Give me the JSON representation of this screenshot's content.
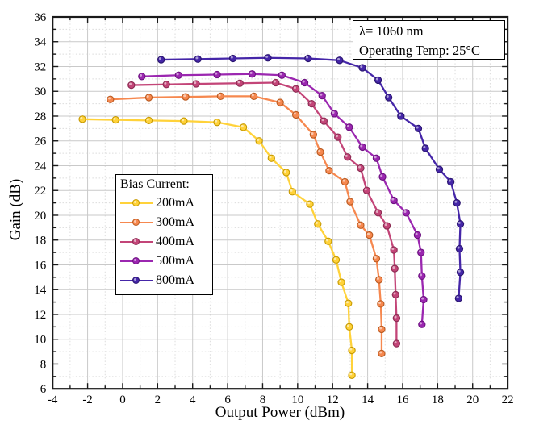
{
  "annotation": {
    "line1": "λ= 1060 nm",
    "line2": "Operating Temp:  25°C"
  },
  "legend": {
    "title": "Bias Current:"
  },
  "chart_data": {
    "type": "line",
    "title": "",
    "xlabel": "Output Power (dBm)",
    "ylabel": "Gain (dB)",
    "xlim": [
      -4,
      22
    ],
    "ylim": [
      6,
      36
    ],
    "x_ticks": [
      -4,
      -2,
      0,
      2,
      4,
      6,
      8,
      10,
      12,
      14,
      16,
      18,
      20,
      22
    ],
    "y_ticks": [
      6,
      8,
      10,
      12,
      14,
      16,
      18,
      20,
      22,
      24,
      26,
      28,
      30,
      32,
      34,
      36
    ],
    "grid": "major solid gray every 2, minor dotted every 1",
    "legend_position": "inside center-left",
    "colors": {
      "major_grid": "#c9c9c9",
      "minor_grid": "#dcdcdc",
      "axis": "#1a1a1a"
    },
    "series": [
      {
        "label": "200mA",
        "color": "#ffd23a",
        "rim": "#c79a00",
        "points": [
          [
            -2.3,
            27.75
          ],
          [
            -0.4,
            27.7
          ],
          [
            1.5,
            27.65
          ],
          [
            3.5,
            27.6
          ],
          [
            5.4,
            27.5
          ],
          [
            6.9,
            27.1
          ],
          [
            7.8,
            26.0
          ],
          [
            8.5,
            24.6
          ],
          [
            9.35,
            23.45
          ],
          [
            9.7,
            21.9
          ],
          [
            10.7,
            20.9
          ],
          [
            11.15,
            19.3
          ],
          [
            11.75,
            17.9
          ],
          [
            12.2,
            16.4
          ],
          [
            12.5,
            14.6
          ],
          [
            12.9,
            12.9
          ],
          [
            12.95,
            11.0
          ],
          [
            13.1,
            9.1
          ],
          [
            13.1,
            7.1
          ]
        ]
      },
      {
        "label": "300mA",
        "color": "#f6884f",
        "rim": "#ba5a20",
        "points": [
          [
            -0.7,
            29.35
          ],
          [
            1.5,
            29.5
          ],
          [
            3.6,
            29.55
          ],
          [
            5.6,
            29.6
          ],
          [
            7.5,
            29.6
          ],
          [
            9.0,
            29.1
          ],
          [
            9.9,
            28.1
          ],
          [
            10.9,
            26.5
          ],
          [
            11.3,
            25.1
          ],
          [
            11.8,
            23.6
          ],
          [
            12.7,
            22.7
          ],
          [
            13.0,
            21.1
          ],
          [
            13.6,
            19.2
          ],
          [
            14.1,
            18.4
          ],
          [
            14.5,
            16.5
          ],
          [
            14.65,
            14.8
          ],
          [
            14.75,
            12.85
          ],
          [
            14.8,
            10.8
          ],
          [
            14.8,
            8.85
          ]
        ]
      },
      {
        "label": "400mA",
        "color": "#c34578",
        "rim": "#8c2b52",
        "points": [
          [
            0.5,
            30.5
          ],
          [
            2.5,
            30.55
          ],
          [
            4.2,
            30.6
          ],
          [
            6.7,
            30.65
          ],
          [
            8.75,
            30.7
          ],
          [
            9.9,
            30.2
          ],
          [
            10.8,
            29.0
          ],
          [
            11.5,
            27.6
          ],
          [
            12.3,
            26.3
          ],
          [
            12.85,
            24.7
          ],
          [
            13.6,
            23.8
          ],
          [
            13.95,
            22.0
          ],
          [
            14.6,
            20.2
          ],
          [
            15.1,
            19.15
          ],
          [
            15.5,
            17.2
          ],
          [
            15.55,
            15.7
          ],
          [
            15.6,
            13.6
          ],
          [
            15.65,
            11.7
          ],
          [
            15.65,
            9.65
          ]
        ]
      },
      {
        "label": "500mA",
        "color": "#9b27b0",
        "rim": "#6c1180",
        "points": [
          [
            1.1,
            31.2
          ],
          [
            3.2,
            31.3
          ],
          [
            5.4,
            31.35
          ],
          [
            7.4,
            31.4
          ],
          [
            9.1,
            31.3
          ],
          [
            10.4,
            30.7
          ],
          [
            11.4,
            29.65
          ],
          [
            12.1,
            28.2
          ],
          [
            12.95,
            27.1
          ],
          [
            13.7,
            25.5
          ],
          [
            14.5,
            24.6
          ],
          [
            14.85,
            23.1
          ],
          [
            15.5,
            21.2
          ],
          [
            16.2,
            20.2
          ],
          [
            16.85,
            18.4
          ],
          [
            17.05,
            17.0
          ],
          [
            17.1,
            15.1
          ],
          [
            17.2,
            13.2
          ],
          [
            17.1,
            11.2
          ]
        ]
      },
      {
        "label": "800mA",
        "color": "#4526a8",
        "rim": "#2a1570",
        "points": [
          [
            2.2,
            32.55
          ],
          [
            4.3,
            32.6
          ],
          [
            6.3,
            32.65
          ],
          [
            8.3,
            32.7
          ],
          [
            10.6,
            32.65
          ],
          [
            12.4,
            32.5
          ],
          [
            13.7,
            31.9
          ],
          [
            14.6,
            30.9
          ],
          [
            15.2,
            29.5
          ],
          [
            15.9,
            28.0
          ],
          [
            16.9,
            27.0
          ],
          [
            17.3,
            25.4
          ],
          [
            18.1,
            23.7
          ],
          [
            18.75,
            22.7
          ],
          [
            19.1,
            21.0
          ],
          [
            19.3,
            19.3
          ],
          [
            19.25,
            17.3
          ],
          [
            19.3,
            15.4
          ],
          [
            19.2,
            13.3
          ]
        ]
      }
    ]
  }
}
